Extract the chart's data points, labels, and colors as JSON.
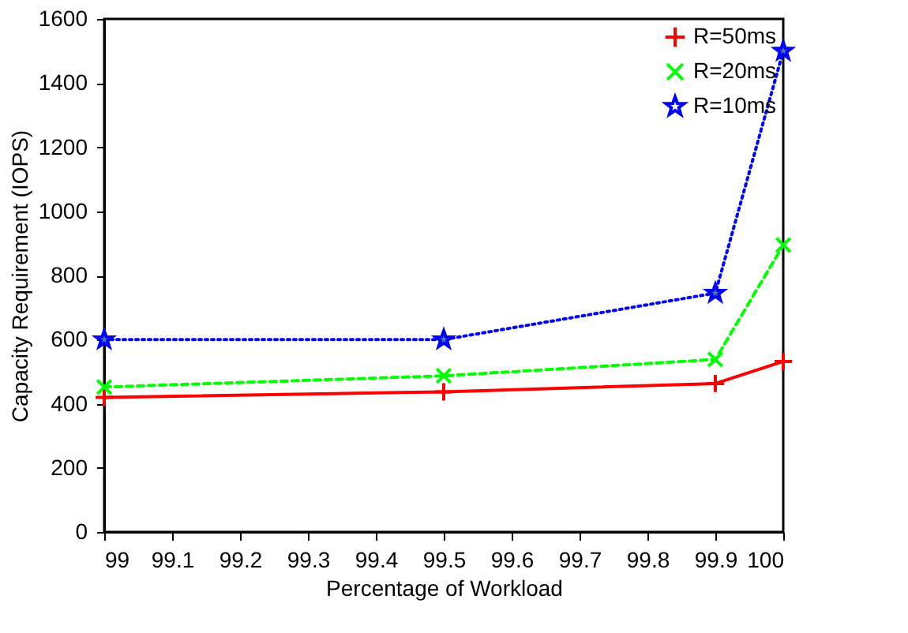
{
  "chart_data": {
    "type": "line",
    "xlabel": "Percentage of Workload",
    "ylabel": "Capacity Requirement (IOPS)",
    "x": [
      99,
      99.5,
      99.9,
      100
    ],
    "series": [
      {
        "name": "R=50ms",
        "color": "#ff0000",
        "values": [
          420,
          437,
          463,
          532
        ],
        "marker": "cross",
        "line_style": "solid"
      },
      {
        "name": "R=20ms",
        "color": "#00ff00",
        "values": [
          452,
          487,
          538,
          895
        ],
        "marker": "x",
        "line_style": "dashed"
      },
      {
        "name": "R=10ms",
        "color": "#0000ff",
        "values": [
          600,
          600,
          745,
          1500
        ],
        "marker": "star",
        "line_style": "dotted"
      }
    ],
    "xlim": [
      99,
      100
    ],
    "xticks": [
      99,
      99.1,
      99.2,
      99.3,
      99.4,
      99.5,
      99.6,
      99.7,
      99.8,
      99.9,
      100
    ],
    "ylim": [
      0,
      1600
    ],
    "yticks": [
      0,
      200,
      400,
      600,
      800,
      1000,
      1200,
      1400,
      1600
    ],
    "grid": false,
    "legend": "top right"
  }
}
